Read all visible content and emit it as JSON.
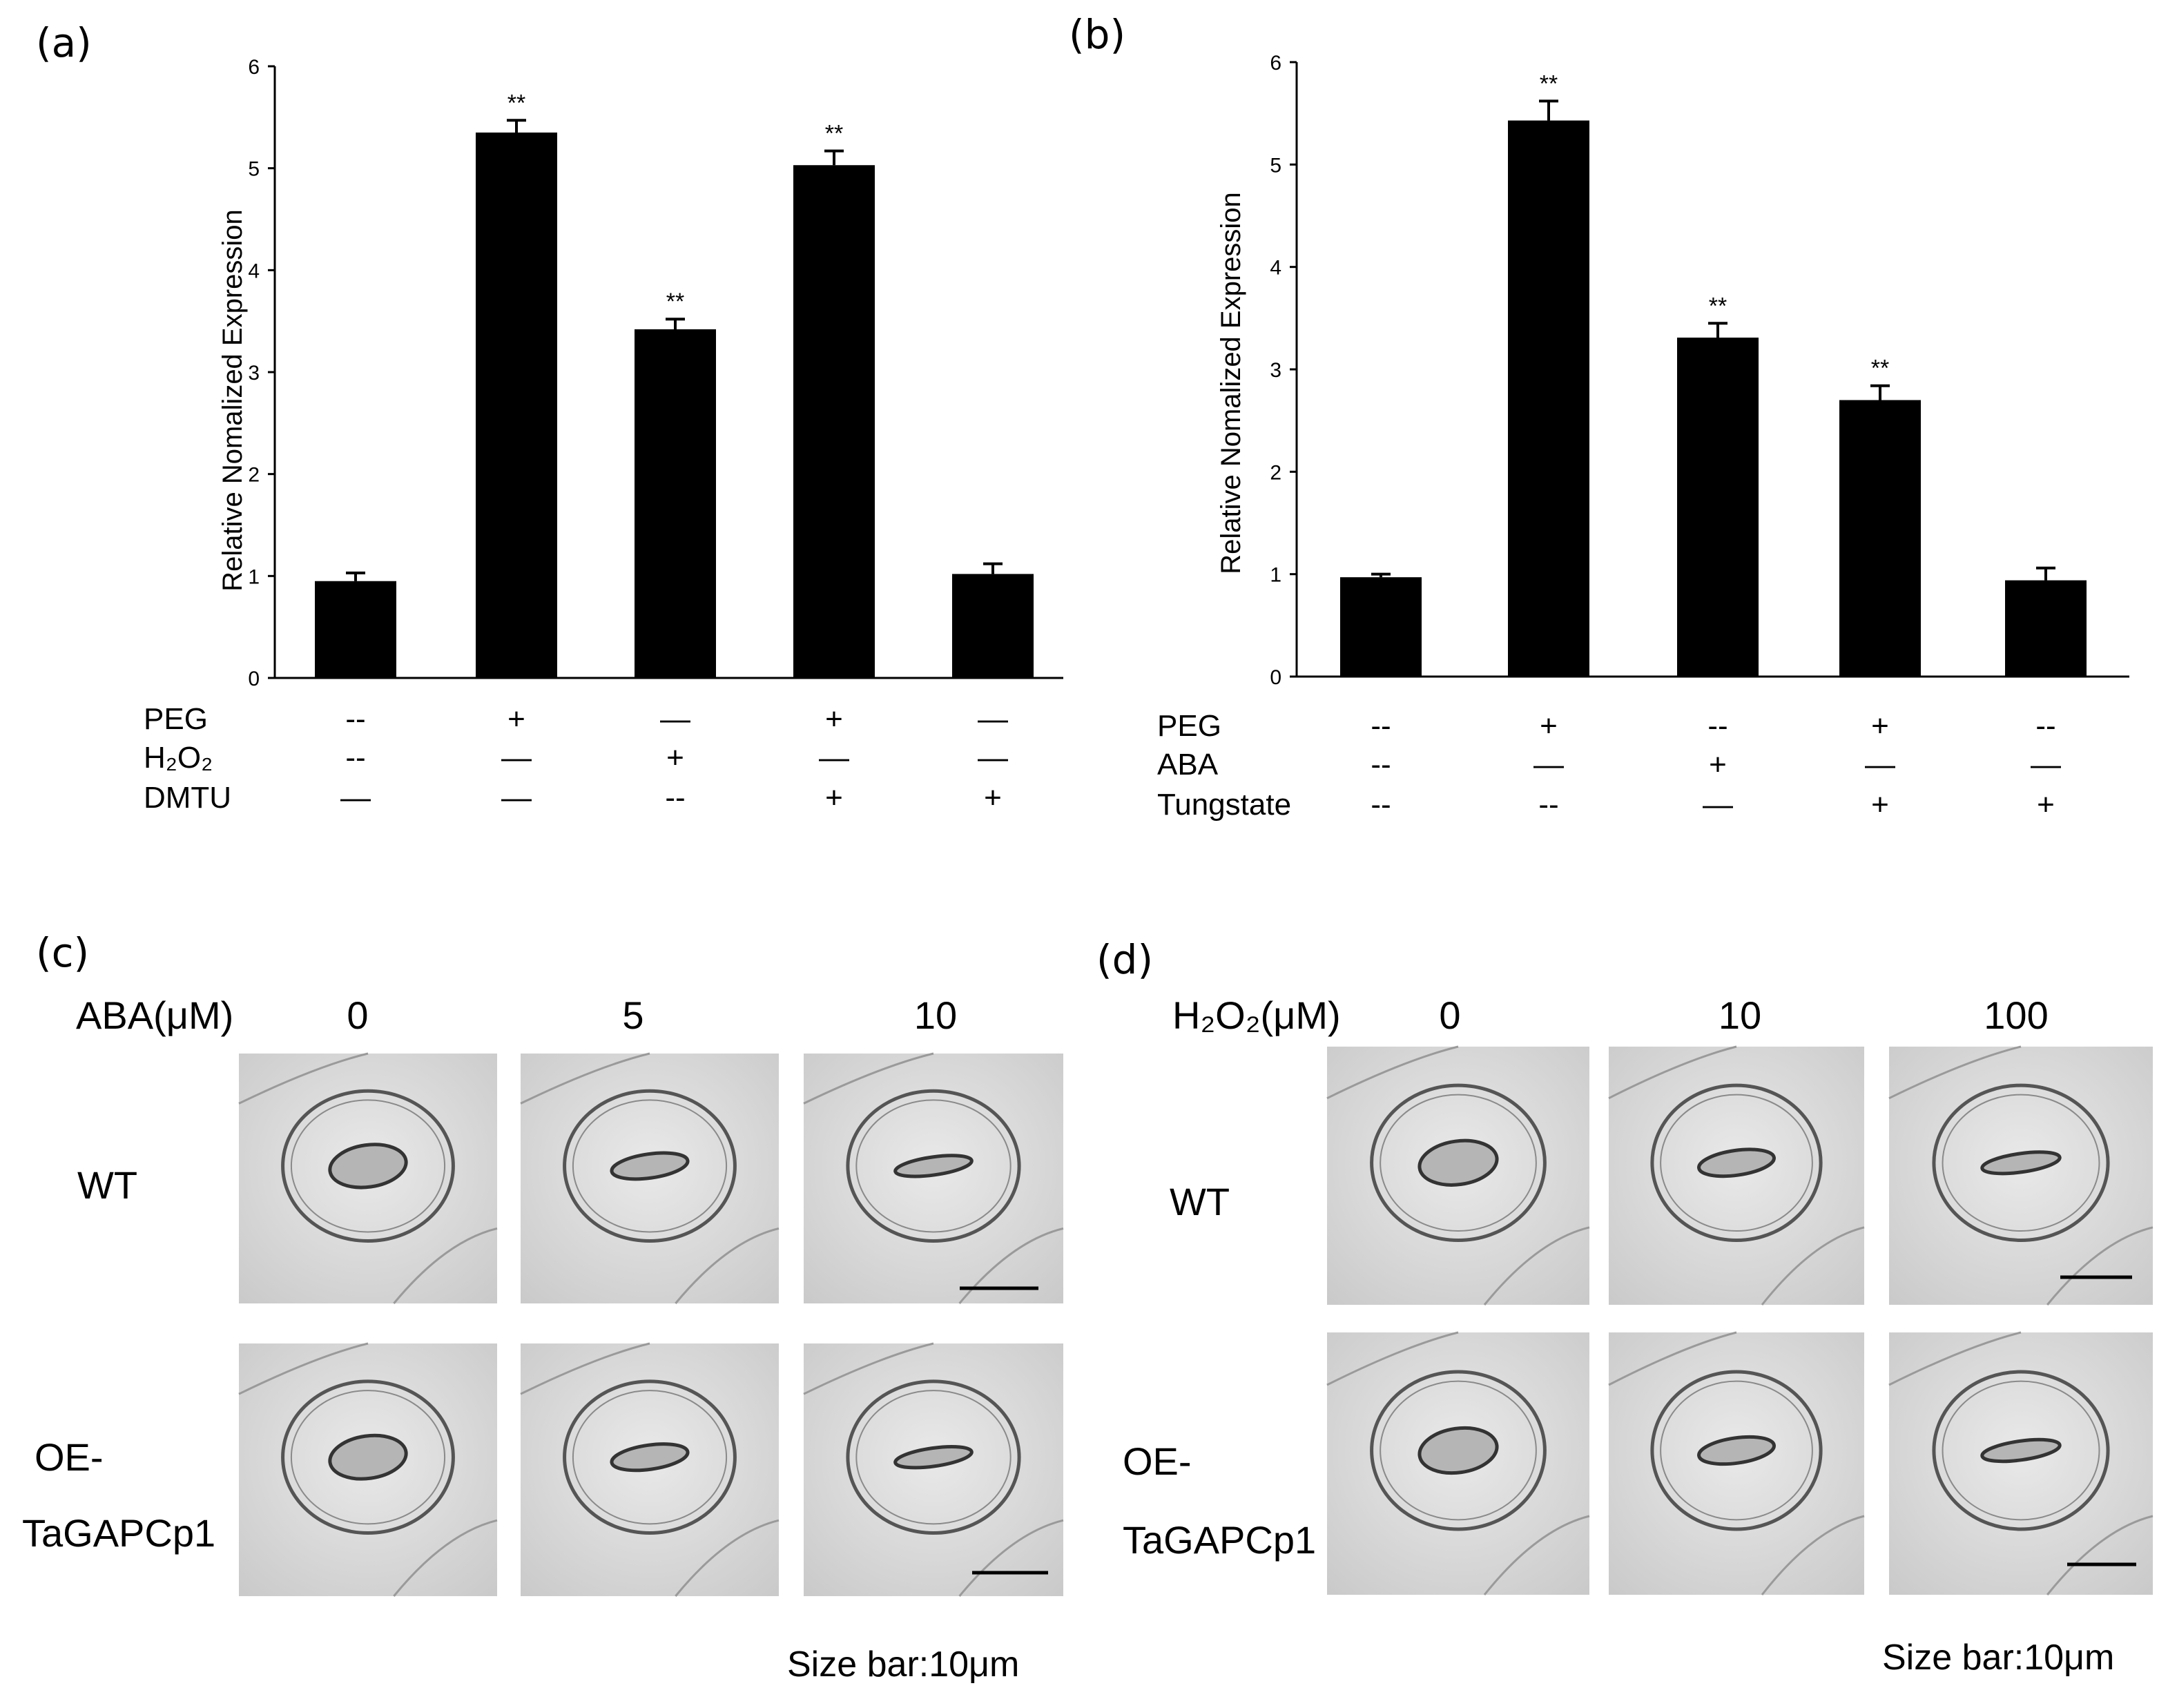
{
  "chart_data": [
    {
      "type": "bar",
      "panel": "(a)",
      "ylabel": "Relative Nomalized Expression",
      "ylim": [
        0,
        6
      ],
      "yticks": [
        "0",
        "1",
        "2",
        "3",
        "4",
        "5",
        "6"
      ],
      "values": [
        0.95,
        5.35,
        3.42,
        5.03,
        1.02
      ],
      "errors": [
        0.08,
        0.12,
        0.1,
        0.14,
        0.1
      ],
      "significance": [
        "",
        "**",
        "**",
        "**",
        ""
      ],
      "treatments": [
        {
          "label": "PEG",
          "signs": [
            "--",
            "+",
            "—",
            "+",
            "—"
          ]
        },
        {
          "label": "H₂O₂",
          "signs": [
            "--",
            "—",
            "+",
            "—",
            "—"
          ]
        },
        {
          "label": "DMTU",
          "signs": [
            "—",
            "—",
            "--",
            "+",
            "+"
          ]
        }
      ]
    },
    {
      "type": "bar",
      "panel": "(b)",
      "ylabel": "Relative Nomalized Expression",
      "ylim": [
        0,
        6
      ],
      "yticks": [
        "0",
        "1",
        "2",
        "3",
        "4",
        "5",
        "6"
      ],
      "values": [
        0.97,
        5.43,
        3.31,
        2.7,
        0.94
      ],
      "errors": [
        0.03,
        0.19,
        0.14,
        0.14,
        0.12
      ],
      "significance": [
        "",
        "**",
        "**",
        "**",
        ""
      ],
      "treatments": [
        {
          "label": "PEG",
          "signs": [
            "--",
            "+",
            "--",
            "+",
            "--"
          ]
        },
        {
          "label": "ABA",
          "signs": [
            "--",
            "—",
            "+",
            "—",
            "—"
          ]
        },
        {
          "label": "Tungstate",
          "signs": [
            "--",
            "--",
            "—",
            "+",
            "+"
          ]
        }
      ]
    }
  ],
  "panel_c": {
    "label": "(c)",
    "condition": "ABA(μM)",
    "concentrations": [
      "0",
      "5",
      "10"
    ],
    "rows": [
      "WT",
      "OE-",
      "TaGAPCp1"
    ],
    "size_bar": "Size bar:10μm"
  },
  "panel_d": {
    "label": "(d)",
    "condition": "H₂O₂(μM)",
    "concentrations": [
      "0",
      "10",
      "100"
    ],
    "rows": [
      "WT",
      "OE-",
      "TaGAPCp1"
    ],
    "size_bar": "Size bar:10μm"
  },
  "colors": {
    "bar": "#000000",
    "micrograph_bg": "#d6d6d6",
    "cell_line": "#555555"
  }
}
